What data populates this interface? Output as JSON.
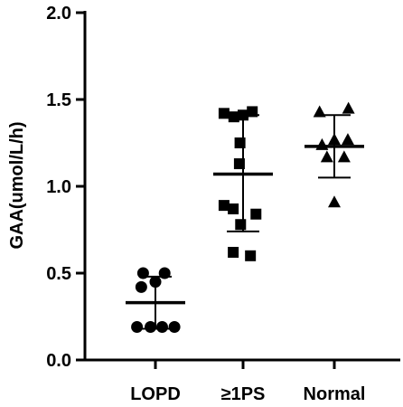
{
  "chart_data": {
    "type": "scatter",
    "ylabel": "GAA(umol/L/h)",
    "xlabel": "",
    "ylim": [
      0.0,
      2.0
    ],
    "yticks": [
      0.0,
      0.5,
      1.0,
      1.5,
      2.0
    ],
    "ytick_labels": [
      "0.0",
      "0.5",
      "1.0",
      "1.5",
      "2.0"
    ],
    "grid": false,
    "categories": [
      "LOPD",
      "≥1PS",
      "Normal"
    ],
    "series": [
      {
        "category": "LOPD",
        "marker": "circle",
        "points": [
          {
            "dx": -0.2,
            "y": 0.5
          },
          {
            "dx": 0.15,
            "y": 0.5
          },
          {
            "dx": 0.0,
            "y": 0.45
          },
          {
            "dx": -0.23,
            "y": 0.42
          },
          {
            "dx": -0.3,
            "y": 0.19
          },
          {
            "dx": -0.08,
            "y": 0.19
          },
          {
            "dx": 0.11,
            "y": 0.19
          },
          {
            "dx": 0.31,
            "y": 0.19
          }
        ],
        "mean": 0.33,
        "sd_low": 0.18,
        "sd_high": 0.48
      },
      {
        "category": "≥1PS",
        "marker": "square",
        "points": [
          {
            "dx": -0.31,
            "y": 1.42
          },
          {
            "dx": -0.15,
            "y": 1.4
          },
          {
            "dx": 0.0,
            "y": 1.41
          },
          {
            "dx": 0.15,
            "y": 1.43
          },
          {
            "dx": -0.05,
            "y": 1.25
          },
          {
            "dx": -0.06,
            "y": 1.13
          },
          {
            "dx": -0.31,
            "y": 0.89
          },
          {
            "dx": -0.16,
            "y": 0.87
          },
          {
            "dx": 0.21,
            "y": 0.84
          },
          {
            "dx": -0.04,
            "y": 0.78
          },
          {
            "dx": -0.16,
            "y": 0.62
          },
          {
            "dx": 0.12,
            "y": 0.6
          }
        ],
        "mean": 1.07,
        "sd_low": 0.74,
        "sd_high": 1.41
      },
      {
        "category": "Normal",
        "marker": "triangle",
        "points": [
          {
            "dx": -0.24,
            "y": 1.43
          },
          {
            "dx": 0.23,
            "y": 1.45
          },
          {
            "dx": -0.2,
            "y": 1.24
          },
          {
            "dx": 0.0,
            "y": 1.27
          },
          {
            "dx": 0.22,
            "y": 1.27
          },
          {
            "dx": -0.12,
            "y": 1.17
          },
          {
            "dx": 0.16,
            "y": 1.17
          },
          {
            "dx": 0.0,
            "y": 0.91
          }
        ],
        "mean": 1.23,
        "sd_low": 1.05,
        "sd_high": 1.41
      }
    ]
  }
}
